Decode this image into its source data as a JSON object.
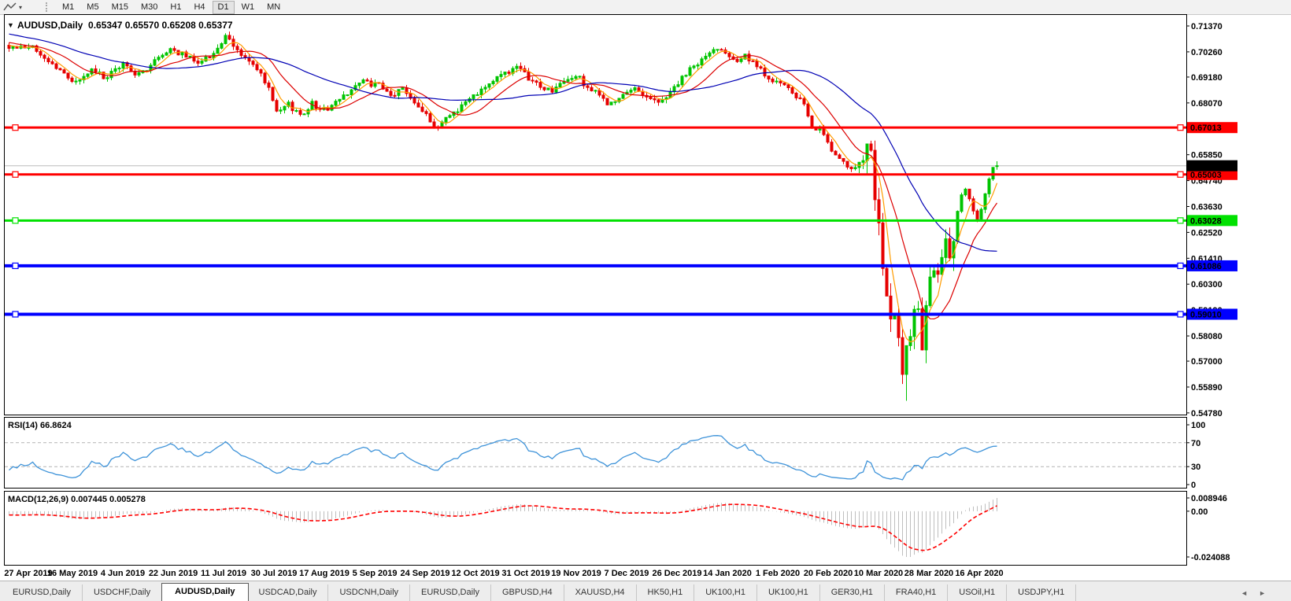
{
  "toolbar": {
    "timeframes": [
      "M1",
      "M5",
      "M15",
      "M30",
      "H1",
      "H4",
      "D1",
      "W1",
      "MN"
    ],
    "active_timeframe": "D1",
    "line_tool_icon": "trendline-tool-icon",
    "caret_icon": "▾"
  },
  "chart_data": {
    "type": "candlestick",
    "symbol": "AUDUSD",
    "timeframe": "Daily",
    "title_symbol": "AUDUSD,Daily",
    "title_ohlc": "0.65347 0.65570 0.65208 0.65377",
    "last_ohlc": {
      "o": 0.65347,
      "h": 0.6557,
      "l": 0.65208,
      "c": 0.65377
    },
    "candle_count": 252,
    "colors": {
      "up": "#00c400",
      "down": "#e60000",
      "ma_fast": "#ff9c00",
      "ma_mid": "#dc0000",
      "ma_slow": "#0000b4",
      "grid_current": "#bbbbbb"
    },
    "moving_averages": [
      {
        "name": "fast",
        "period": 5,
        "color": "#ff9c00"
      },
      {
        "name": "mid",
        "period": 13,
        "color": "#dc0000"
      },
      {
        "name": "slow",
        "period": 34,
        "color": "#0000b4"
      }
    ],
    "price_axis_ticks": [
      "0.71370",
      "0.70260",
      "0.69180",
      "0.68070",
      "0.66960",
      "0.65850",
      "0.64740",
      "0.63630",
      "0.62520",
      "0.61410",
      "0.60300",
      "0.59190",
      "0.58080",
      "0.57000",
      "0.55890",
      "0.54780"
    ],
    "current_price": {
      "value": 0.65377,
      "label": "0.65377",
      "bg": "#000000",
      "fg": "#ffffff"
    },
    "hlines": [
      {
        "value": 0.67013,
        "label": "0.67013",
        "color": "#ff0000",
        "text": "#ffffff",
        "width": 3
      },
      {
        "value": 0.65003,
        "label": "0.65003",
        "color": "#ff0000",
        "text": "#ffffff",
        "width": 3
      },
      {
        "value": 0.63028,
        "label": "0.63028",
        "color": "#00e100",
        "text": "#000000",
        "width": 3
      },
      {
        "value": 0.61086,
        "label": "0.61086",
        "color": "#0000ff",
        "text": "#ffffff",
        "width": 4
      },
      {
        "value": 0.5901,
        "label": "0.59010",
        "color": "#0000ff",
        "text": "#ffffff",
        "width": 4
      }
    ],
    "date_labels": [
      "27 Apr 2019",
      "16 May 2019",
      "4 Jun 2019",
      "22 Jun 2019",
      "11 Jul 2019",
      "30 Jul 2019",
      "17 Aug 2019",
      "5 Sep 2019",
      "24 Sep 2019",
      "12 Oct 2019",
      "31 Oct 2019",
      "19 Nov 2019",
      "7 Dec 2019",
      "26 Dec 2019",
      "14 Jan 2020",
      "1 Feb 2020",
      "20 Feb 2020",
      "10 Mar 2020",
      "28 Mar 2020",
      "16 Apr 2020"
    ],
    "pre_anchors": [
      [
        -40,
        0.7185
      ],
      [
        -28,
        0.715
      ],
      [
        -16,
        0.7095
      ],
      [
        -8,
        0.707
      ],
      [
        -1,
        0.7045
      ]
    ],
    "close_anchors": [
      [
        0,
        0.7035
      ],
      [
        5,
        0.7052
      ],
      [
        10,
        0.6988
      ],
      [
        14,
        0.693
      ],
      [
        17,
        0.6895
      ],
      [
        21,
        0.6945
      ],
      [
        25,
        0.6915
      ],
      [
        29,
        0.6975
      ],
      [
        33,
        0.6925
      ],
      [
        37,
        0.6985
      ],
      [
        41,
        0.704
      ],
      [
        45,
        0.7005
      ],
      [
        49,
        0.6982
      ],
      [
        53,
        0.704
      ],
      [
        55,
        0.7088
      ],
      [
        58,
        0.703
      ],
      [
        61,
        0.6985
      ],
      [
        64,
        0.6925
      ],
      [
        66,
        0.6865
      ],
      [
        68,
        0.676
      ],
      [
        71,
        0.68
      ],
      [
        74,
        0.6755
      ],
      [
        77,
        0.6805
      ],
      [
        80,
        0.6775
      ],
      [
        84,
        0.682
      ],
      [
        87,
        0.687
      ],
      [
        90,
        0.6898
      ],
      [
        94,
        0.688
      ],
      [
        97,
        0.6835
      ],
      [
        100,
        0.687
      ],
      [
        103,
        0.6815
      ],
      [
        106,
        0.6762
      ],
      [
        108,
        0.669
      ],
      [
        111,
        0.6745
      ],
      [
        114,
        0.678
      ],
      [
        117,
        0.6825
      ],
      [
        120,
        0.687
      ],
      [
        123,
        0.69
      ],
      [
        126,
        0.694
      ],
      [
        129,
        0.6955
      ],
      [
        132,
        0.6915
      ],
      [
        135,
        0.6875
      ],
      [
        138,
        0.686
      ],
      [
        141,
        0.6895
      ],
      [
        144,
        0.6925
      ],
      [
        147,
        0.6875
      ],
      [
        150,
        0.6835
      ],
      [
        153,
        0.68
      ],
      [
        156,
        0.6835
      ],
      [
        159,
        0.687
      ],
      [
        162,
        0.6838
      ],
      [
        165,
        0.6805
      ],
      [
        168,
        0.6855
      ],
      [
        171,
        0.691
      ],
      [
        174,
        0.6965
      ],
      [
        177,
        0.7005
      ],
      [
        180,
        0.7045
      ],
      [
        182,
        0.703
      ],
      [
        185,
        0.699
      ],
      [
        187,
        0.7008
      ],
      [
        190,
        0.6958
      ],
      [
        193,
        0.6918
      ],
      [
        196,
        0.6888
      ],
      [
        199,
        0.6848
      ],
      [
        202,
        0.68
      ],
      [
        204,
        0.669
      ],
      [
        206,
        0.6715
      ],
      [
        208,
        0.6626
      ],
      [
        211,
        0.656
      ],
      [
        214,
        0.6515
      ],
      [
        216,
        0.656
      ],
      [
        218,
        0.664
      ],
      [
        219,
        0.658
      ],
      [
        220,
        0.642
      ],
      [
        221,
        0.625
      ],
      [
        222,
        0.612
      ],
      [
        223,
        0.595
      ],
      [
        224,
        0.585
      ],
      [
        225,
        0.592
      ],
      [
        226,
        0.576
      ],
      [
        227,
        0.568
      ],
      [
        228,
        0.574
      ],
      [
        229,
        0.583
      ],
      [
        230,
        0.596
      ],
      [
        231,
        0.588
      ],
      [
        232,
        0.579
      ],
      [
        233,
        0.59
      ],
      [
        234,
        0.602
      ],
      [
        235,
        0.61
      ],
      [
        236,
        0.606
      ],
      [
        237,
        0.613
      ],
      [
        238,
        0.619
      ],
      [
        239,
        0.615
      ],
      [
        240,
        0.622
      ],
      [
        241,
        0.635
      ],
      [
        242,
        0.641
      ],
      [
        243,
        0.644
      ],
      [
        244,
        0.639
      ],
      [
        245,
        0.634
      ],
      [
        246,
        0.63
      ],
      [
        247,
        0.636
      ],
      [
        248,
        0.642
      ],
      [
        249,
        0.647
      ],
      [
        250,
        0.652
      ],
      [
        251,
        0.65377
      ]
    ],
    "spike": {
      "index": 228,
      "low": 0.553
    },
    "crash_range": [
      216,
      240
    ],
    "noise": {
      "seed": 42,
      "amp": 0.0013,
      "amp_crash": 0.0045,
      "wick": 0.0017,
      "wick_crash": 0.006
    },
    "rsi": {
      "label": "RSI(14) 66.8624",
      "period": 14,
      "value": 66.8624,
      "levels": [
        70,
        30
      ],
      "axis_ticks": [
        "100",
        "70",
        "30",
        "0"
      ],
      "color": "#3e93d9",
      "level_color": "#b4b4b4"
    },
    "macd": {
      "label": "MACD(12,26,9) 0.007445 0.005278",
      "fast": 12,
      "slow": 26,
      "signal": 9,
      "value_main": 0.007445,
      "value_signal": 0.005278,
      "axis_max": "0.008946",
      "axis_zero": "0.00",
      "axis_min": "-0.024088",
      "hist_color": "#bebebe",
      "signal_color": "#ff0000"
    }
  },
  "tabs": {
    "items": [
      "EURUSD,Daily",
      "USDCHF,Daily",
      "AUDUSD,Daily",
      "USDCAD,Daily",
      "USDCNH,Daily",
      "EURUSD,Daily",
      "GBPUSD,H4",
      "XAUUSD,H4",
      "HK50,H1",
      "UK100,H1",
      "UK100,H1",
      "GER30,H1",
      "FRA40,H1",
      "USOil,H1",
      "USDJPY,H1"
    ],
    "active_index": 2,
    "scroll_left_icon": "◄",
    "scroll_right_icon": "►"
  },
  "title_dropdown_icon": "▼"
}
